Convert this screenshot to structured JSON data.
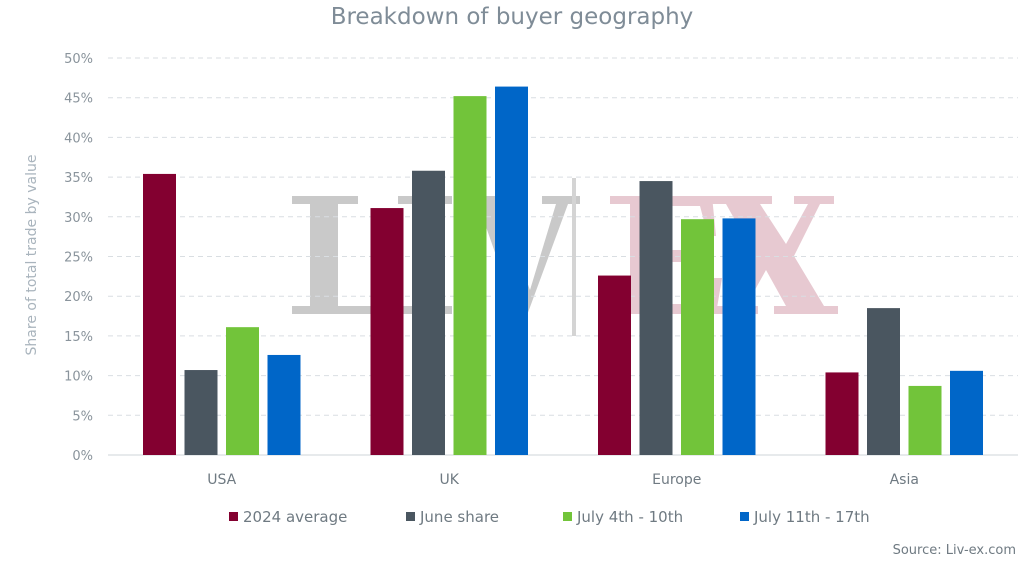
{
  "chart_data": {
    "type": "bar",
    "title": "Breakdown of buyer geography",
    "ylabel": "Share of total trade by value",
    "xlabel": "",
    "ylim": [
      0,
      50
    ],
    "ytick_values": [
      0,
      5,
      10,
      15,
      20,
      25,
      30,
      35,
      40,
      45,
      50
    ],
    "ytick_labels": [
      "0%",
      "5%",
      "10%",
      "15%",
      "20%",
      "25%",
      "30%",
      "35%",
      "40%",
      "45%",
      "50%"
    ],
    "grid": true,
    "legend_position": "bottom",
    "categories": [
      "USA",
      "UK",
      "Europe",
      "Asia"
    ],
    "series": [
      {
        "name": "2024 average",
        "color": "#830030",
        "values": [
          35.4,
          31.1,
          22.6,
          10.4
        ]
      },
      {
        "name": "June share",
        "color": "#4a5660",
        "values": [
          10.7,
          35.8,
          34.5,
          18.5
        ]
      },
      {
        "name": "July 4th - 10th",
        "color": "#72c43a",
        "values": [
          16.1,
          45.2,
          29.7,
          8.7
        ]
      },
      {
        "name": "July 11th - 17th",
        "color": "#0066c8",
        "values": [
          12.6,
          46.4,
          29.8,
          10.6
        ]
      }
    ],
    "source": "Source: Liv-ex.com",
    "watermark": "LIV|EX"
  }
}
